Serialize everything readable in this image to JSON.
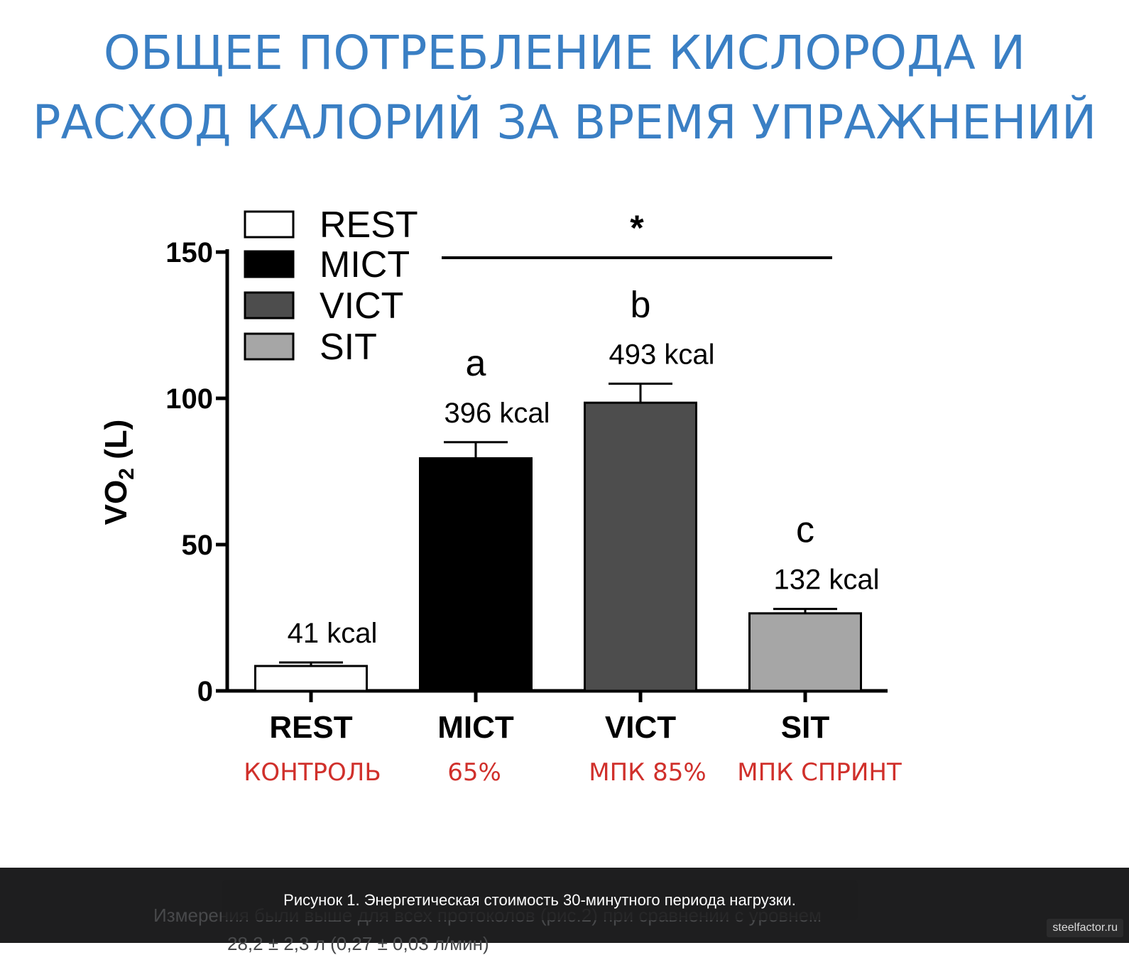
{
  "page": {
    "title_line1": "ОБЩЕЕ ПОТРЕБЛЕНИЕ КИСЛОРОДА И",
    "title_line2": "РАСХОД КАЛОРИЙ ЗА ВРЕМЯ УПРАЖНЕНИЙ",
    "caption": "Рисунок 1. Энергетическая стоимость 30-минутного периода нагрузки.",
    "under_text": "Измерения были выше для всех протоколов (рис.2) при сравнении с уровнем",
    "under_text2": "28,2 ± 2,3 л (0,27 ± 0,03 л/мин)",
    "watermark": "steelfactor.ru",
    "sublabel_color": "#d0302b",
    "title_color": "#3a7fc4"
  },
  "chart_data": {
    "type": "bar",
    "title": "",
    "xlabel": "",
    "ylabel": "VO",
    "ylabel_sub": "2",
    "ylabel_unit": " (L)",
    "ylim": [
      0,
      150
    ],
    "yticks": [
      "0",
      "50",
      "100",
      "150"
    ],
    "categories": [
      "REST",
      "MICT",
      "VICT",
      "SIT"
    ],
    "sublabels": [
      "КОНТРОЛЬ",
      "65%",
      "МПК 85%",
      "МПК СПРИНТ"
    ],
    "values": [
      8.5,
      79.5,
      98.5,
      26.5
    ],
    "errors": [
      1.2,
      5.5,
      6.5,
      1.5
    ],
    "bar_colors": [
      "#ffffff",
      "#000000",
      "#4d4d4d",
      "#a6a6a6"
    ],
    "bar_labels": [
      "41 kcal",
      "396 kcal",
      "493 kcal",
      "132 kcal"
    ],
    "letters": [
      "",
      "a",
      "b",
      "c"
    ],
    "significance": {
      "symbol": "*",
      "from": "MICT",
      "to": "SIT"
    },
    "legend": {
      "position": "top-left",
      "entries": [
        {
          "label": "REST",
          "color": "#ffffff"
        },
        {
          "label": "MICT",
          "color": "#000000"
        },
        {
          "label": "VICT",
          "color": "#4d4d4d"
        },
        {
          "label": "SIT",
          "color": "#a6a6a6"
        }
      ]
    },
    "grid": false
  }
}
